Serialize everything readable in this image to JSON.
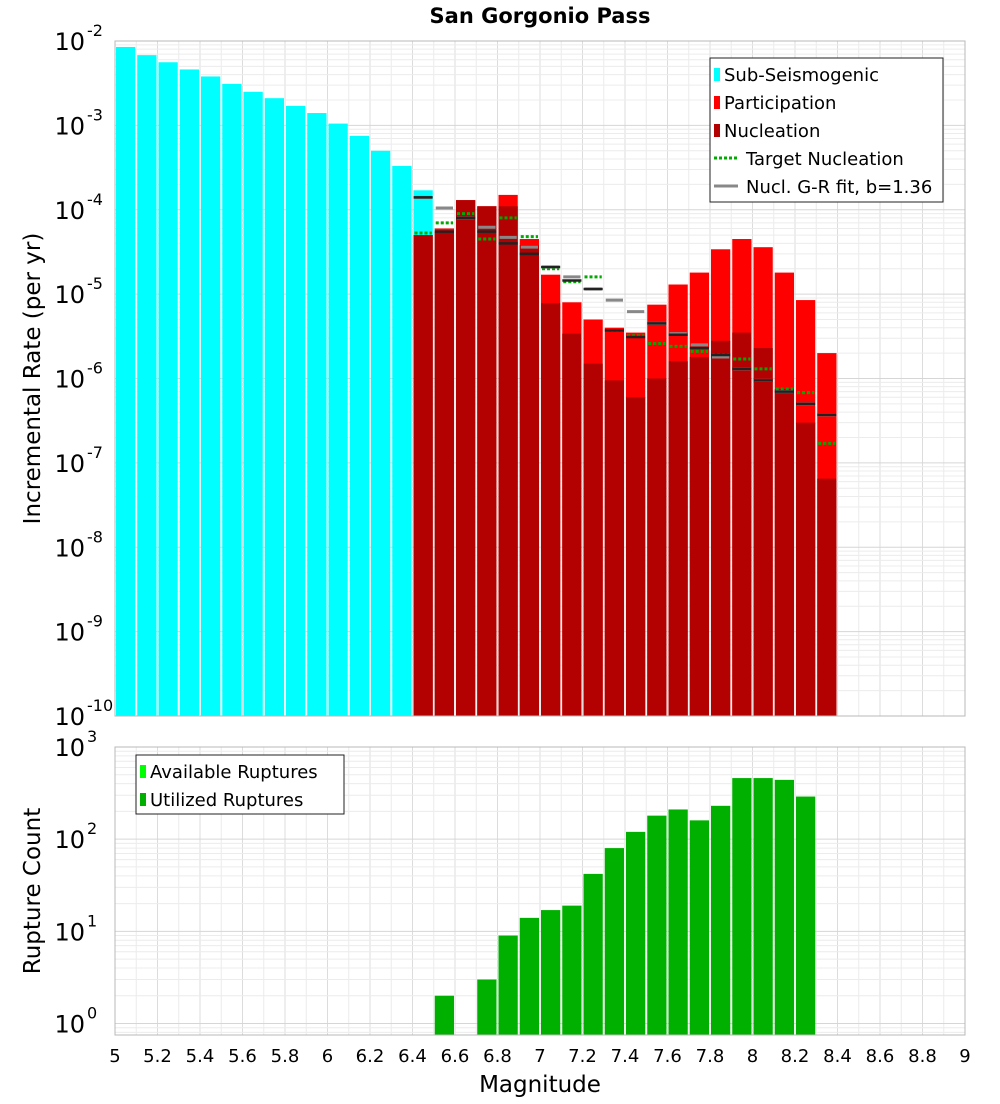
{
  "chart_data": [
    {
      "type": "bar",
      "title": "San Gorgonio Pass",
      "xlabel": "",
      "ylabel": "Incremental Rate (per yr)",
      "yscale": "log",
      "xlim": [
        5,
        9
      ],
      "ylim": [
        1e-10,
        0.01
      ],
      "grid": true,
      "legend_position": "top-right",
      "x_ticks": [
        "5",
        "5.2",
        "5.4",
        "5.6",
        "5.8",
        "6",
        "6.2",
        "6.4",
        "6.6",
        "6.8",
        "7",
        "7.2",
        "7.4",
        "7.6",
        "7.8",
        "8",
        "8.2",
        "8.4",
        "8.6",
        "8.8",
        "9"
      ],
      "y_ticks": [
        {
          "base": "10",
          "exp": "-10",
          "value": 1e-10
        },
        {
          "base": "10",
          "exp": "-9",
          "value": 1e-09
        },
        {
          "base": "10",
          "exp": "-8",
          "value": 1e-08
        },
        {
          "base": "10",
          "exp": "-7",
          "value": 1e-07
        },
        {
          "base": "10",
          "exp": "-6",
          "value": 1e-06
        },
        {
          "base": "10",
          "exp": "-5",
          "value": 1e-05
        },
        {
          "base": "10",
          "exp": "-4",
          "value": 0.0001
        },
        {
          "base": "10",
          "exp": "-3",
          "value": 0.001
        },
        {
          "base": "10",
          "exp": "-2",
          "value": 0.01
        }
      ],
      "series": [
        {
          "name": "Sub-Seismogenic",
          "style": "bar",
          "color": "#00ffff",
          "x": [
            5.05,
            5.15,
            5.25,
            5.35,
            5.45,
            5.55,
            5.65,
            5.75,
            5.85,
            5.95,
            6.05,
            6.15,
            6.25,
            6.35,
            6.45,
            6.55
          ],
          "values": [
            0.0085,
            0.0068,
            0.0056,
            0.0046,
            0.0038,
            0.0031,
            0.0025,
            0.0021,
            0.0017,
            0.0014,
            0.00105,
            0.00075,
            0.0005,
            0.00033,
            0.00017,
            6e-05
          ]
        },
        {
          "name": "Participation",
          "style": "bar",
          "color": "#ff0000",
          "x": [
            6.45,
            6.55,
            6.65,
            6.75,
            6.85,
            6.95,
            7.05,
            7.15,
            7.25,
            7.35,
            7.45,
            7.55,
            7.65,
            7.75,
            7.85,
            7.95,
            8.05,
            8.15,
            8.25,
            8.35
          ],
          "values": [
            5e-05,
            6e-05,
            0.00013,
            0.00011,
            0.00015,
            4.5e-05,
            1.7e-05,
            8e-06,
            5e-06,
            4e-06,
            3.5e-06,
            7.5e-06,
            1.3e-05,
            1.8e-05,
            3.4e-05,
            4.5e-05,
            3.6e-05,
            1.8e-05,
            8.5e-06,
            2e-06
          ]
        },
        {
          "name": "Nucleation",
          "style": "bar",
          "color": "#b30000",
          "x": [
            6.45,
            6.55,
            6.65,
            6.75,
            6.85,
            6.95,
            7.05,
            7.15,
            7.25,
            7.35,
            7.45,
            7.55,
            7.65,
            7.75,
            7.85,
            7.95,
            8.05,
            8.15,
            8.25,
            8.35
          ],
          "values": [
            5e-05,
            5.5e-05,
            0.00013,
            0.00011,
            0.00011,
            3.8e-05,
            7.8e-06,
            3.4e-06,
            1.5e-06,
            9.5e-07,
            6e-07,
            1e-06,
            1.6e-06,
            1.8e-06,
            2.8e-06,
            3.5e-06,
            2.3e-06,
            7.5e-07,
            3e-07,
            6.5e-08
          ]
        },
        {
          "name": "Target Nucleation",
          "style": "dotted-step",
          "color": "#00aa00",
          "x": [
            6.45,
            6.55,
            6.65,
            6.75,
            6.85,
            6.95,
            7.05,
            7.15,
            7.25,
            7.35,
            7.45,
            7.55,
            7.65,
            7.75,
            7.85,
            7.95,
            8.05,
            8.15,
            8.25,
            8.35
          ],
          "values": [
            5.3e-05,
            7e-05,
            9e-05,
            4.5e-05,
            8e-05,
            4.8e-05,
            2e-05,
            1.4e-05,
            1.6e-05,
            3.7e-06,
            3.2e-06,
            2.6e-06,
            2.4e-06,
            2.1e-06,
            1.9e-06,
            1.7e-06,
            1.3e-06,
            7.5e-07,
            6.8e-07,
            1.7e-07
          ]
        },
        {
          "name": "Nucl. G-R fit, b=1.36",
          "style": "step",
          "color": "#888888",
          "x": [
            6.45,
            6.55,
            6.65,
            6.75,
            6.85,
            6.95,
            7.05,
            7.15,
            7.25,
            7.35,
            7.45,
            7.55,
            7.65,
            7.75,
            7.85,
            7.95,
            8.05,
            8.15,
            8.25,
            8.35
          ],
          "values": [
            0.00014,
            0.000105,
            8e-05,
            6.2e-05,
            4.7e-05,
            3.6e-05,
            2.1e-05,
            1.6e-05,
            1.15e-05,
            8.5e-06,
            6.2e-06,
            4.5e-06,
            3.4e-06,
            2.5e-06,
            1.8e-06,
            1.3e-06,
            9.5e-07,
            7e-07,
            5e-07,
            3.7e-07
          ]
        }
      ],
      "nucleation_marks": {
        "color": "#222222",
        "x": [
          6.45,
          6.55,
          6.65,
          6.75,
          6.85,
          6.95,
          7.05,
          7.15,
          7.25,
          7.35,
          7.45,
          7.55,
          7.65,
          7.75,
          7.85,
          7.95,
          8.05,
          8.15,
          8.25,
          8.35
        ],
        "values": [
          0.00014,
          5.5e-05,
          8e-05,
          5.5e-05,
          4e-05,
          3e-05,
          2.1e-05,
          1.45e-05,
          1.15e-05,
          3.7e-06,
          3.1e-06,
          4.5e-06,
          3.3e-06,
          2.3e-06,
          1.9e-06,
          1.3e-06,
          9.5e-07,
          7e-07,
          5e-07,
          3.7e-07
        ]
      }
    },
    {
      "type": "bar",
      "title": "",
      "xlabel": "Magnitude",
      "ylabel": "Rupture Count",
      "yscale": "log",
      "xlim": [
        5,
        9
      ],
      "ylim": [
        0.75,
        1000
      ],
      "grid": true,
      "legend_position": "top-left",
      "x_ticks": [
        "5",
        "5.2",
        "5.4",
        "5.6",
        "5.8",
        "6",
        "6.2",
        "6.4",
        "6.6",
        "6.8",
        "7",
        "7.2",
        "7.4",
        "7.6",
        "7.8",
        "8",
        "8.2",
        "8.4",
        "8.6",
        "8.8",
        "9"
      ],
      "y_ticks": [
        {
          "base": "10",
          "exp": "0",
          "value": 1
        },
        {
          "base": "10",
          "exp": "1",
          "value": 10
        },
        {
          "base": "10",
          "exp": "2",
          "value": 100
        },
        {
          "base": "10",
          "exp": "3",
          "value": 1000
        }
      ],
      "series": [
        {
          "name": "Available Ruptures",
          "style": "bar",
          "color": "#00ff00",
          "x": [],
          "values": []
        },
        {
          "name": "Utilized Ruptures",
          "style": "bar",
          "color": "#00b000",
          "x": [
            6.55,
            6.75,
            6.85,
            6.95,
            7.05,
            7.15,
            7.25,
            7.35,
            7.45,
            7.55,
            7.65,
            7.75,
            7.85,
            7.95,
            8.05,
            8.15,
            8.25
          ],
          "values": [
            2,
            3,
            9,
            14,
            17,
            19,
            42,
            80,
            120,
            180,
            210,
            160,
            230,
            460,
            460,
            440,
            290
          ]
        }
      ]
    }
  ]
}
